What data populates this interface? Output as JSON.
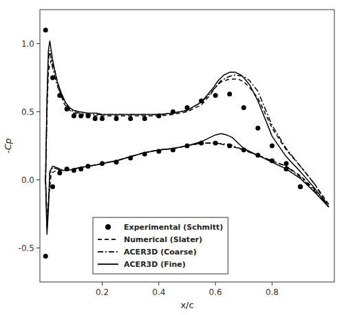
{
  "chart_data": {
    "type": "line",
    "xlabel": "x/c",
    "ylabel": "-Cp",
    "xlim": [
      -0.02,
      1.02
    ],
    "ylim": [
      -0.75,
      1.25
    ],
    "xticks": [
      0.2,
      0.4,
      0.6,
      0.8
    ],
    "yticks": [
      -0.5,
      {
        "value": 0.0,
        "label": "0.0"
      },
      0.5,
      {
        "value": 1.0,
        "label": "1.0"
      }
    ],
    "grid": false,
    "legend": "lower left",
    "series": [
      {
        "name": "Experimental (Schmitt)",
        "type": "scatter",
        "marker": "circle",
        "color": "#000000",
        "x": [
          0.0,
          0.025,
          0.05,
          0.075,
          0.1,
          0.125,
          0.15,
          0.175,
          0.2,
          0.25,
          0.3,
          0.35,
          0.4,
          0.45,
          0.5,
          0.55,
          0.6,
          0.65,
          0.7,
          0.75,
          0.8,
          0.85,
          0.9
        ],
        "values": [
          1.1,
          0.75,
          0.62,
          0.52,
          0.47,
          0.47,
          0.47,
          0.45,
          0.45,
          0.45,
          0.45,
          0.45,
          0.47,
          0.5,
          0.53,
          0.58,
          0.62,
          0.63,
          0.53,
          0.38,
          0.25,
          0.12,
          -0.05
        ]
      },
      {
        "name": "Experimental (Schmitt)",
        "type": "scatter",
        "marker": "circle",
        "color": "#000000",
        "x": [
          0.0,
          0.025,
          0.05,
          0.075,
          0.1,
          0.125,
          0.15,
          0.2,
          0.25,
          0.3,
          0.35,
          0.4,
          0.45,
          0.5,
          0.55,
          0.6,
          0.65,
          0.7,
          0.75,
          0.8,
          0.85,
          0.9
        ],
        "values": [
          -0.56,
          -0.05,
          0.05,
          0.08,
          0.07,
          0.08,
          0.1,
          0.12,
          0.13,
          0.16,
          0.19,
          0.21,
          0.22,
          0.25,
          0.27,
          0.27,
          0.25,
          0.22,
          0.18,
          0.14,
          0.08,
          -0.05
        ]
      },
      {
        "name": "Numerical (Slater)",
        "type": "line",
        "line_style": "dashed",
        "color": "#000000",
        "x": [
          0.0,
          0.005,
          0.01,
          0.02,
          0.035,
          0.05,
          0.065,
          0.08,
          0.1,
          0.12,
          0.15,
          0.18,
          0.2,
          0.25,
          0.3,
          0.35,
          0.4,
          0.45,
          0.5,
          0.55,
          0.58,
          0.6,
          0.62,
          0.65,
          0.68,
          0.7,
          0.72,
          0.75,
          0.8,
          0.85,
          0.9,
          0.95,
          1.0
        ],
        "values": [
          0.0,
          0.5,
          0.8,
          0.88,
          0.78,
          0.65,
          0.56,
          0.52,
          0.49,
          0.48,
          0.47,
          0.47,
          0.47,
          0.47,
          0.47,
          0.47,
          0.47,
          0.48,
          0.5,
          0.55,
          0.62,
          0.68,
          0.72,
          0.74,
          0.74,
          0.72,
          0.68,
          0.6,
          0.38,
          0.22,
          0.1,
          -0.03,
          -0.18
        ]
      },
      {
        "name": "Numerical (Slater)",
        "type": "line",
        "line_style": "dashed",
        "color": "#000000",
        "x": [
          0.0,
          0.005,
          0.01,
          0.02,
          0.04,
          0.06,
          0.08,
          0.1,
          0.12,
          0.15,
          0.18,
          0.2,
          0.25,
          0.3,
          0.35,
          0.4,
          0.45,
          0.5,
          0.55,
          0.6,
          0.65,
          0.7,
          0.75,
          0.8,
          0.85,
          0.9,
          0.95,
          1.0
        ],
        "values": [
          0.0,
          -0.3,
          -0.15,
          0.05,
          0.07,
          0.07,
          0.07,
          0.08,
          0.09,
          0.1,
          0.11,
          0.12,
          0.14,
          0.17,
          0.2,
          0.22,
          0.23,
          0.25,
          0.27,
          0.27,
          0.25,
          0.22,
          0.18,
          0.14,
          0.1,
          0.03,
          -0.07,
          -0.18
        ]
      },
      {
        "name": "ACER3D (Coarse)",
        "type": "line",
        "line_style": "dashdot",
        "color": "#000000",
        "x": [
          0.0,
          0.005,
          0.01,
          0.015,
          0.025,
          0.04,
          0.055,
          0.07,
          0.085,
          0.1,
          0.12,
          0.15,
          0.18,
          0.2,
          0.25,
          0.3,
          0.35,
          0.4,
          0.45,
          0.5,
          0.55,
          0.58,
          0.6,
          0.62,
          0.65,
          0.67,
          0.7,
          0.72,
          0.75,
          0.8,
          0.85,
          0.9,
          0.95,
          1.0
        ],
        "values": [
          0.0,
          0.55,
          0.88,
          0.95,
          0.82,
          0.7,
          0.62,
          0.56,
          0.52,
          0.5,
          0.49,
          0.48,
          0.48,
          0.48,
          0.48,
          0.48,
          0.48,
          0.48,
          0.49,
          0.51,
          0.57,
          0.63,
          0.68,
          0.73,
          0.76,
          0.77,
          0.76,
          0.73,
          0.65,
          0.4,
          0.23,
          0.1,
          -0.03,
          -0.2
        ]
      },
      {
        "name": "ACER3D (Coarse)",
        "type": "line",
        "line_style": "dashdot",
        "color": "#000000",
        "x": [
          0.0,
          0.005,
          0.01,
          0.015,
          0.025,
          0.04,
          0.06,
          0.08,
          0.1,
          0.12,
          0.15,
          0.18,
          0.2,
          0.25,
          0.3,
          0.35,
          0.4,
          0.45,
          0.5,
          0.55,
          0.6,
          0.65,
          0.7,
          0.75,
          0.8,
          0.85,
          0.9,
          0.95,
          1.0
        ],
        "values": [
          0.0,
          -0.35,
          -0.18,
          0.05,
          0.09,
          0.08,
          0.07,
          0.07,
          0.08,
          0.09,
          0.1,
          0.11,
          0.12,
          0.14,
          0.17,
          0.2,
          0.22,
          0.23,
          0.25,
          0.27,
          0.27,
          0.26,
          0.22,
          0.18,
          0.14,
          0.1,
          0.02,
          -0.08,
          -0.2
        ]
      },
      {
        "name": "ACER3D (Fine)",
        "type": "line",
        "line_style": "solid",
        "color": "#000000",
        "x": [
          0.0,
          0.005,
          0.01,
          0.015,
          0.025,
          0.04,
          0.055,
          0.07,
          0.085,
          0.1,
          0.12,
          0.15,
          0.18,
          0.2,
          0.25,
          0.3,
          0.35,
          0.4,
          0.45,
          0.5,
          0.55,
          0.57,
          0.59,
          0.61,
          0.63,
          0.65,
          0.67,
          0.69,
          0.7,
          0.72,
          0.75,
          0.8,
          0.85,
          0.9,
          0.95,
          1.0
        ],
        "values": [
          0.0,
          0.6,
          0.95,
          1.02,
          0.88,
          0.73,
          0.64,
          0.57,
          0.53,
          0.51,
          0.5,
          0.49,
          0.49,
          0.48,
          0.48,
          0.48,
          0.48,
          0.48,
          0.49,
          0.51,
          0.57,
          0.62,
          0.67,
          0.73,
          0.77,
          0.79,
          0.79,
          0.77,
          0.75,
          0.7,
          0.58,
          0.32,
          0.17,
          0.06,
          -0.06,
          -0.2
        ]
      },
      {
        "name": "ACER3D (Fine)",
        "type": "line",
        "line_style": "solid",
        "color": "#000000",
        "x": [
          0.0,
          0.005,
          0.01,
          0.015,
          0.025,
          0.04,
          0.06,
          0.08,
          0.1,
          0.12,
          0.15,
          0.18,
          0.2,
          0.25,
          0.3,
          0.35,
          0.4,
          0.45,
          0.5,
          0.55,
          0.58,
          0.6,
          0.62,
          0.64,
          0.66,
          0.68,
          0.7,
          0.75,
          0.8,
          0.85,
          0.9,
          0.95,
          1.0
        ],
        "values": [
          0.0,
          -0.4,
          -0.22,
          0.06,
          0.1,
          0.09,
          0.07,
          0.07,
          0.08,
          0.09,
          0.1,
          0.11,
          0.12,
          0.14,
          0.17,
          0.2,
          0.22,
          0.23,
          0.25,
          0.28,
          0.31,
          0.33,
          0.34,
          0.33,
          0.31,
          0.27,
          0.23,
          0.18,
          0.13,
          0.08,
          0.01,
          -0.09,
          -0.2
        ]
      }
    ]
  }
}
